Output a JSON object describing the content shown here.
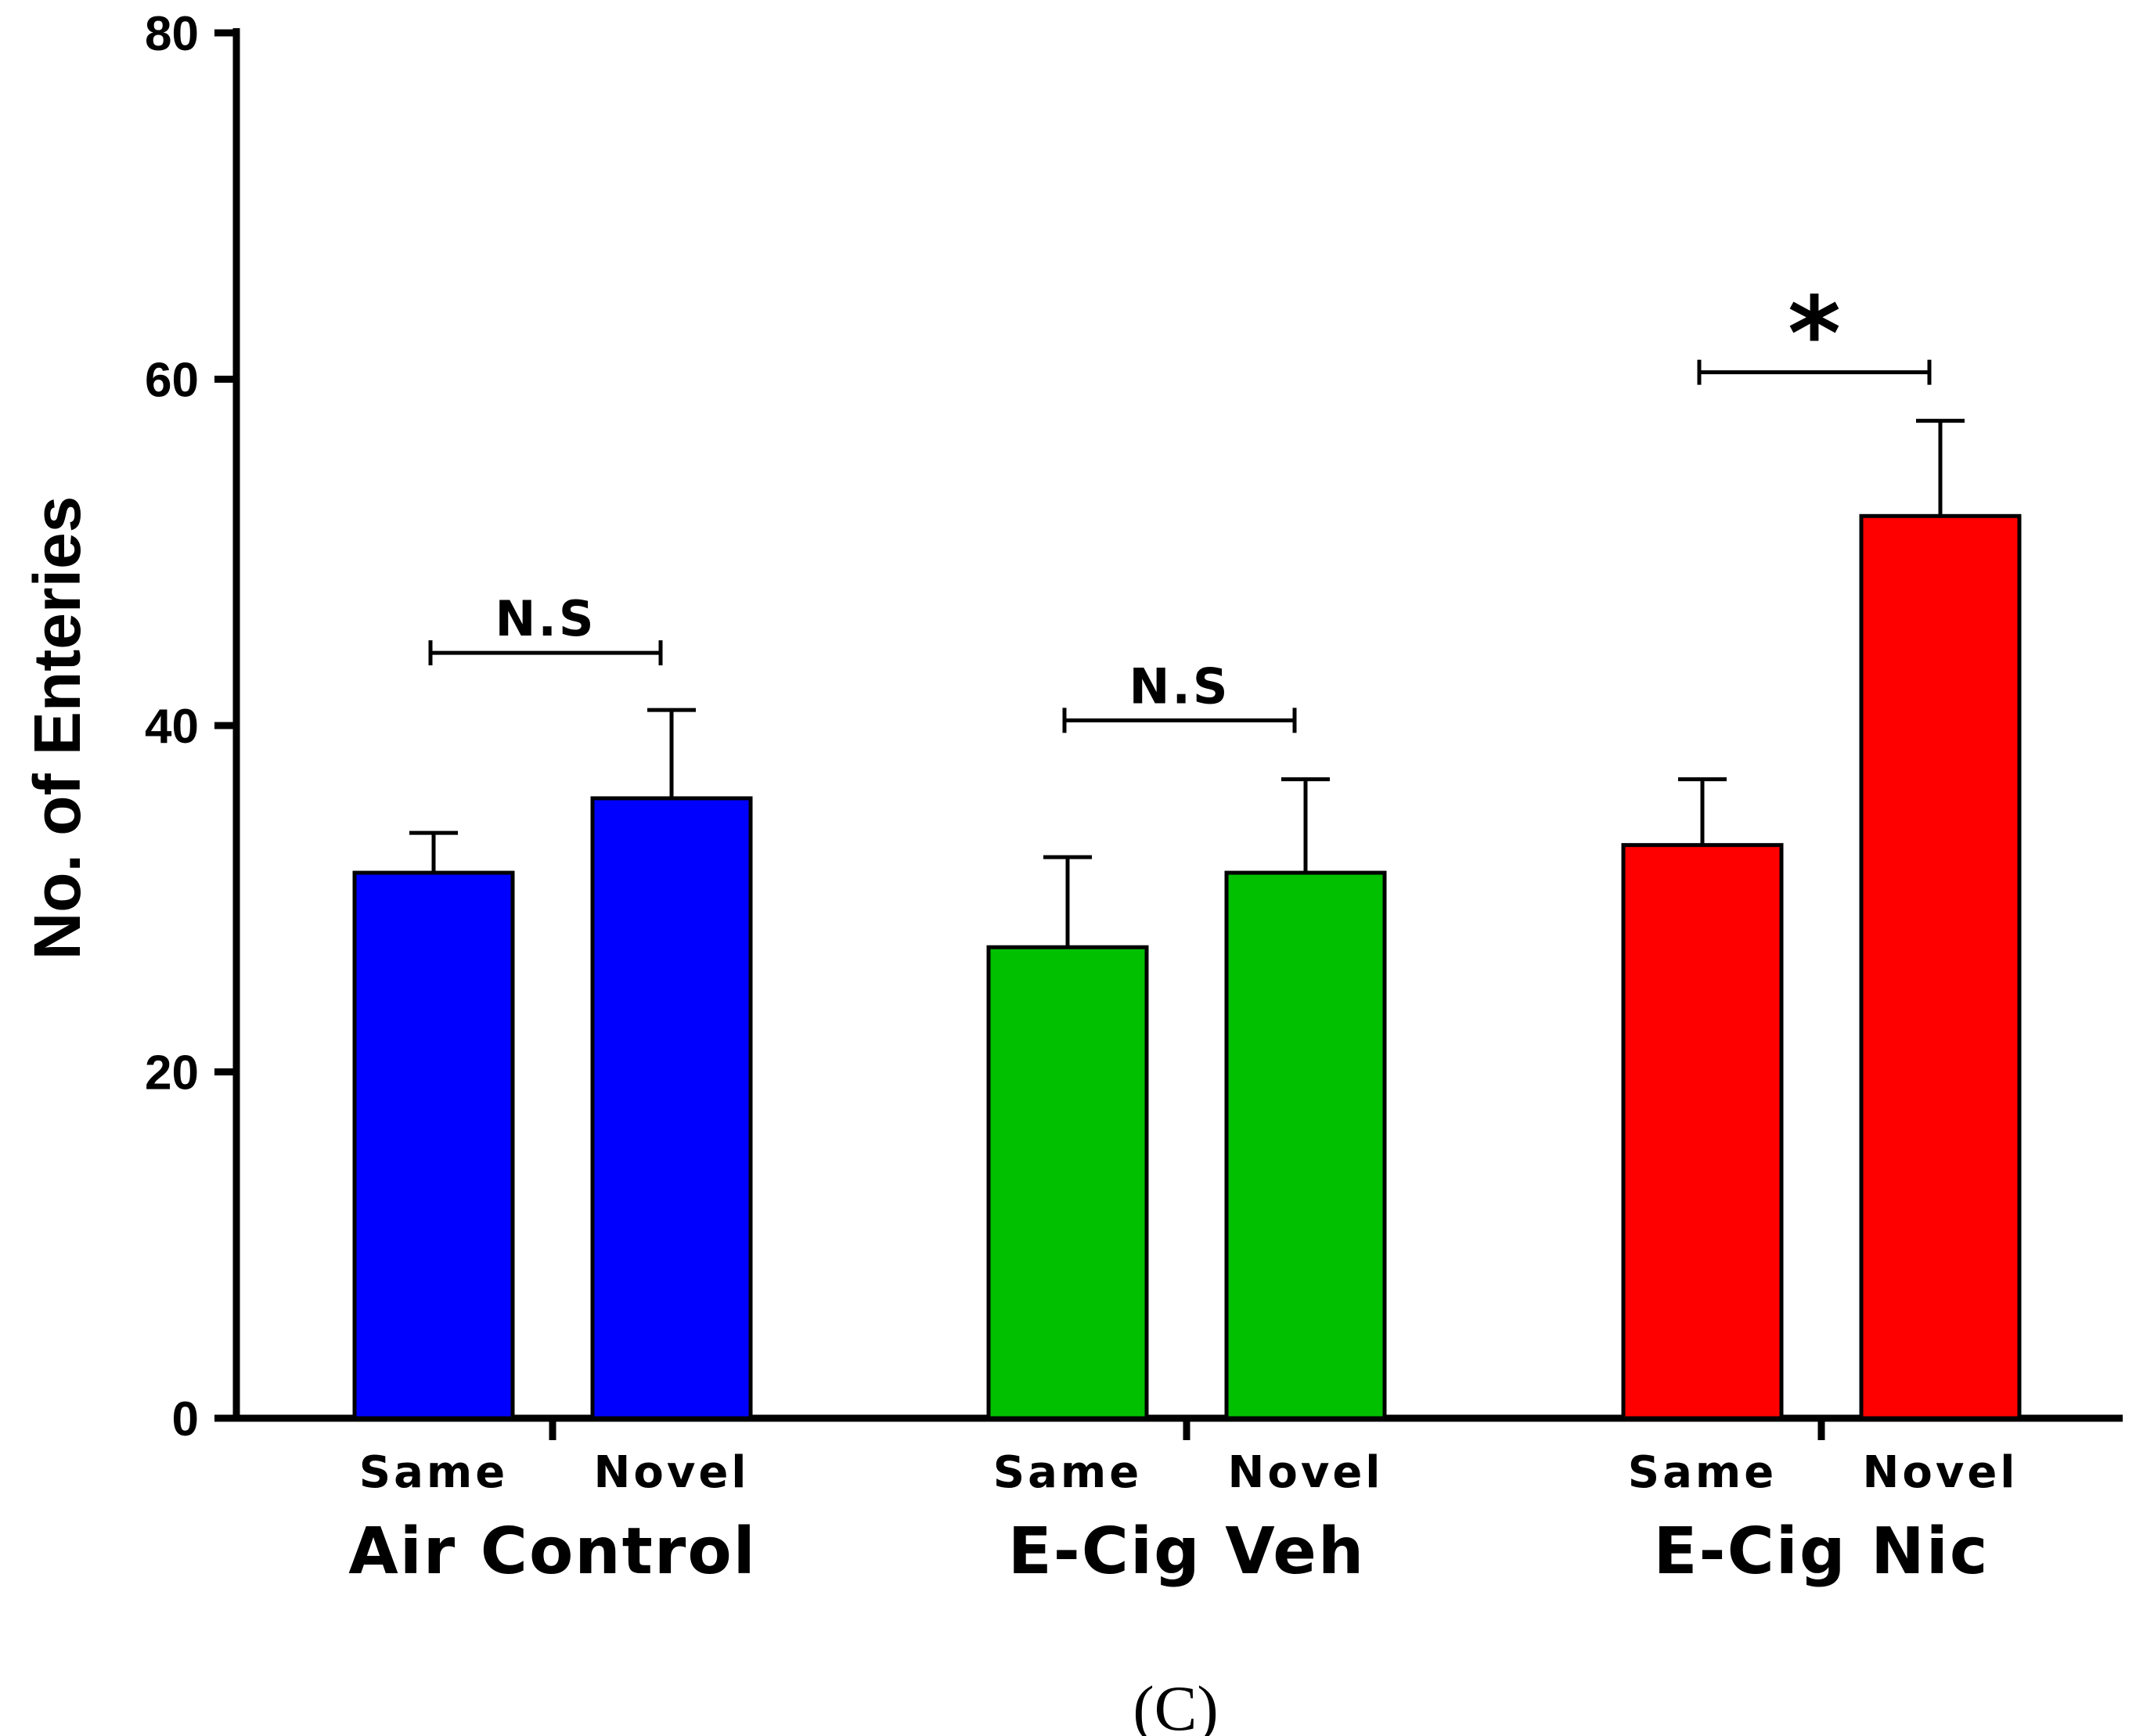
{
  "chart_data": {
    "type": "bar",
    "title": "",
    "xlabel": "",
    "ylabel": "No. of Enteries",
    "ylim": [
      0,
      80
    ],
    "yticks": [
      0,
      20,
      40,
      60,
      80
    ],
    "groups": [
      {
        "name": "Air Control",
        "color": "#0000ff",
        "bars": [
          {
            "category": "Same",
            "value": 31.5,
            "error": 2.3
          },
          {
            "category": "Novel",
            "value": 35.8,
            "error": 5.1
          }
        ],
        "annotation": {
          "text": "N.S",
          "value": 44.2
        }
      },
      {
        "name": "E-Cig Veh",
        "color": "#00c000",
        "bars": [
          {
            "category": "Same",
            "value": 27.2,
            "error": 5.2
          },
          {
            "category": "Novel",
            "value": 31.5,
            "error": 5.4
          }
        ],
        "annotation": {
          "text": "N.S",
          "value": 40.3
        }
      },
      {
        "name": "E-Cig Nic",
        "color": "#ff0000",
        "bars": [
          {
            "category": "Same",
            "value": 33.1,
            "error": 3.8
          },
          {
            "category": "Novel",
            "value": 52.1,
            "error": 5.5
          }
        ],
        "annotation": {
          "text": "*",
          "value": 60.4
        }
      }
    ]
  },
  "caption": "(C)"
}
